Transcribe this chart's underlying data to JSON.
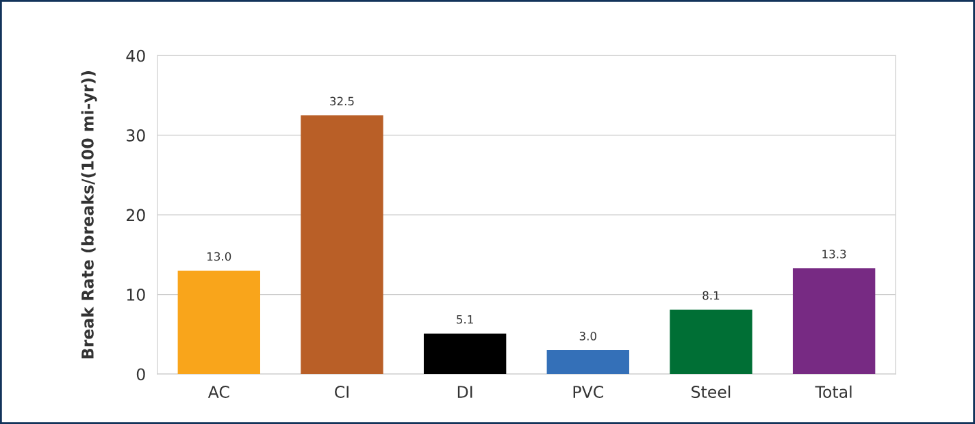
{
  "chart_data": {
    "type": "bar",
    "ylabel": "Break Rate (breaks/(100 mi-yr))",
    "categories": [
      "AC",
      "CI",
      "DI",
      "PVC",
      "Steel",
      "Total"
    ],
    "values": [
      13.0,
      32.5,
      5.1,
      3.0,
      8.1,
      13.3
    ],
    "colors": [
      "#f9a51b",
      "#b95f27",
      "#000000",
      "#3470b8",
      "#006f35",
      "#772a83"
    ],
    "ylim": [
      0,
      40
    ],
    "yticks": [
      0,
      10,
      20,
      30,
      40
    ],
    "grid": "y",
    "value_labels": [
      "13.0",
      "32.5",
      "5.1",
      "3.0",
      "8.1",
      "13.3"
    ]
  }
}
